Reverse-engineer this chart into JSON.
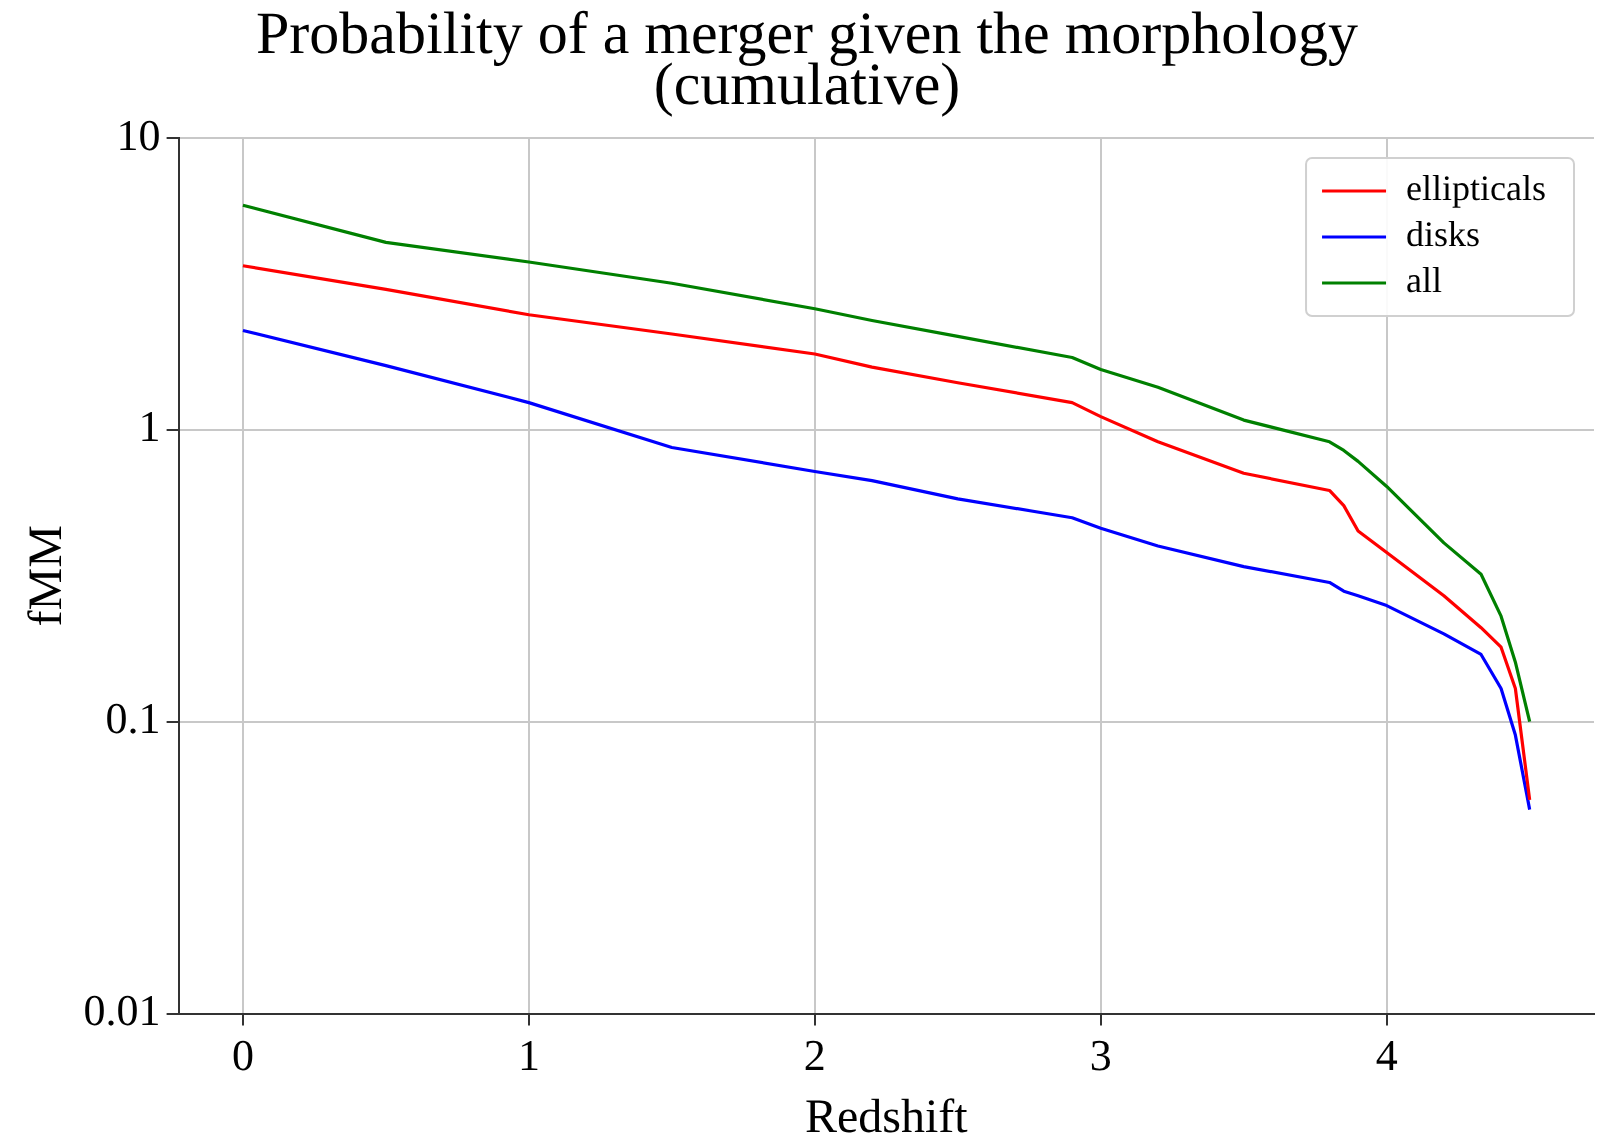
{
  "chart_data": {
    "type": "line",
    "title": "Probability of a merger given the morphology\n(cumulative)",
    "xlabel": "Redshift",
    "ylabel": "fMM",
    "log": "y",
    "grid": true,
    "legend": "top right",
    "marker": "none",
    "line_style": "solid",
    "xlim": [
      -0.225,
      4.725
    ],
    "xticks": [
      0,
      1,
      2,
      3,
      4
    ],
    "ylim": [
      0.01,
      10
    ],
    "yticks": [
      {
        "value": 0.01,
        "label": "0.01"
      },
      {
        "value": 0.1,
        "label": "0.1"
      },
      {
        "value": 1,
        "label": "1"
      },
      {
        "value": 10,
        "label": "10"
      }
    ],
    "x": [
      0,
      0.5,
      1,
      1.5,
      2,
      2.2,
      2.5,
      2.9,
      3,
      3.2,
      3.5,
      3.8,
      3.85,
      3.9,
      4,
      4.2,
      4.33,
      4.4,
      4.45,
      4.5
    ],
    "series": [
      {
        "name": "ellipticals",
        "color": "#ff0000",
        "values": [
          3.65,
          3.03,
          2.48,
          2.13,
          1.82,
          1.64,
          1.45,
          1.24,
          1.11,
          0.91,
          0.71,
          0.62,
          0.55,
          0.45,
          0.38,
          0.27,
          0.21,
          0.18,
          0.13,
          0.054
        ]
      },
      {
        "name": "disks",
        "color": "#0000ff",
        "values": [
          2.19,
          1.66,
          1.24,
          0.87,
          0.72,
          0.67,
          0.58,
          0.5,
          0.46,
          0.4,
          0.34,
          0.3,
          0.28,
          0.27,
          0.25,
          0.2,
          0.17,
          0.13,
          0.09,
          0.05
        ]
      },
      {
        "name": "all",
        "color": "#008000",
        "values": [
          5.88,
          4.39,
          3.76,
          3.18,
          2.6,
          2.37,
          2.09,
          1.77,
          1.61,
          1.4,
          1.08,
          0.91,
          0.85,
          0.78,
          0.64,
          0.41,
          0.32,
          0.23,
          0.16,
          0.1
        ]
      }
    ]
  }
}
